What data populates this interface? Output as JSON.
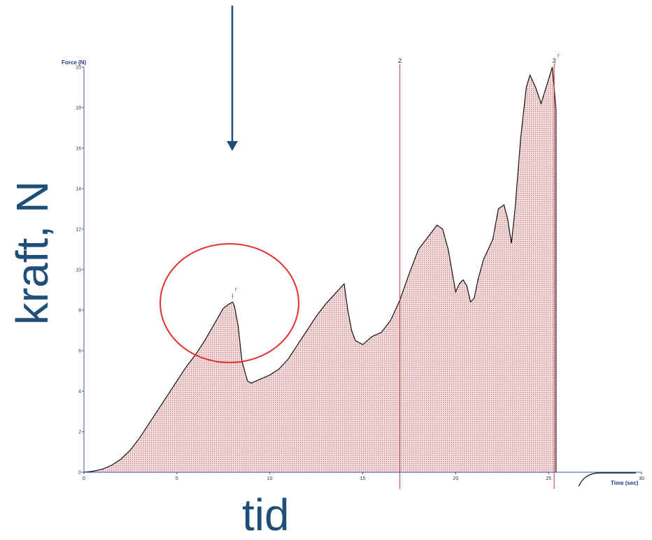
{
  "chart_data": {
    "type": "area",
    "xlabel": "Time (sec)",
    "ylabel": "Force (N)",
    "xlim": [
      0,
      30
    ],
    "ylim": [
      0,
      20
    ],
    "x_ticks": [
      0,
      5,
      10,
      15,
      20,
      25,
      30
    ],
    "y_ticks": [
      0,
      2,
      4,
      6,
      8,
      10,
      12,
      14,
      16,
      18,
      20
    ],
    "grid": false,
    "series": [
      {
        "x": [
          0,
          0.5,
          1,
          1.5,
          2,
          2.5,
          3,
          3.5,
          4,
          4.5,
          5,
          5.5,
          6,
          6.5,
          7,
          7.5,
          7.8,
          8,
          8.1,
          8.3,
          8.5,
          8.8,
          9,
          9.5,
          10,
          10.5,
          11,
          11.5,
          12,
          12.5,
          13,
          13.5,
          13.8,
          14,
          14.2,
          14.4,
          14.6,
          15,
          15.5,
          16,
          16.5,
          17,
          17.5,
          18,
          18.5,
          19,
          19.3,
          19.6,
          20,
          20.2,
          20.4,
          20.6,
          20.8,
          21,
          21.2,
          21.5,
          22,
          22.3,
          22.6,
          22.8,
          23,
          23.2,
          23.5,
          23.8,
          24,
          24.3,
          24.6,
          25,
          25.2,
          25.4
        ],
        "y": [
          0,
          0.05,
          0.15,
          0.35,
          0.65,
          1.1,
          1.7,
          2.4,
          3.1,
          3.8,
          4.5,
          5.2,
          5.8,
          6.5,
          7.3,
          8.1,
          8.3,
          8.4,
          8.2,
          7.2,
          5.5,
          4.5,
          4.4,
          4.6,
          4.8,
          5.1,
          5.6,
          6.3,
          7.0,
          7.7,
          8.3,
          8.8,
          9.1,
          9.3,
          8.0,
          7.0,
          6.5,
          6.3,
          6.7,
          6.9,
          7.5,
          8.5,
          9.8,
          11.0,
          11.6,
          12.2,
          12.0,
          11.0,
          8.9,
          9.3,
          9.5,
          9.2,
          8.4,
          8.6,
          9.5,
          10.5,
          11.5,
          13.0,
          13.2,
          12.5,
          11.3,
          13.0,
          16.5,
          19.0,
          19.6,
          19.0,
          18.2,
          19.4,
          20.0,
          17.9
        ]
      }
    ],
    "markers": [
      {
        "x": 17,
        "label": "2"
      },
      {
        "x": 25.3,
        "label": "3"
      }
    ],
    "peak_marks": [
      {
        "x": 8.0,
        "y": 8.45,
        "label": "1",
        "flag": "F"
      },
      {
        "x": 25.35,
        "y": 20.0,
        "label": "",
        "flag": "F"
      }
    ],
    "annotation_labels": {
      "y_big": "kraft, N",
      "x_big": "tid"
    }
  }
}
